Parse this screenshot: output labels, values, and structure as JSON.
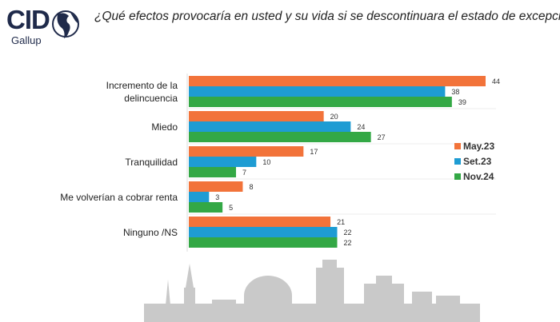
{
  "logo": {
    "text": "CID",
    "sub": "Gallup"
  },
  "title": "¿Qué efectos provocaría en usted y su vida si se descontinuara el estado de excepción?",
  "colors": {
    "May.23": "#F2733A",
    "Set.23": "#1E9CD3",
    "Nov.24": "#33A845"
  },
  "chart_data": {
    "type": "bar",
    "orientation": "horizontal",
    "title": "¿Qué efectos provocaría en usted y su vida si se descontinuara el estado de excepción?",
    "categories": [
      "Incremento de la delincuencia",
      "Miedo",
      "Tranquilidad",
      "Me volverían a cobrar renta",
      "Ninguno /NS"
    ],
    "category_lines": [
      [
        "Incremento de la",
        "delincuencia"
      ],
      [
        "Miedo"
      ],
      [
        "Tranquilidad"
      ],
      [
        "Me volverían a cobrar renta"
      ],
      [
        "Ninguno /NS"
      ]
    ],
    "series": [
      {
        "name": "May.23",
        "values": [
          44,
          20,
          17,
          8,
          21
        ]
      },
      {
        "name": "Set.23",
        "values": [
          38,
          24,
          10,
          3,
          22
        ]
      },
      {
        "name": "Nov.24",
        "values": [
          39,
          27,
          7,
          5,
          22
        ]
      }
    ],
    "xlim": [
      0,
      44
    ],
    "grid": false,
    "legend": "right",
    "data_labels": true
  }
}
